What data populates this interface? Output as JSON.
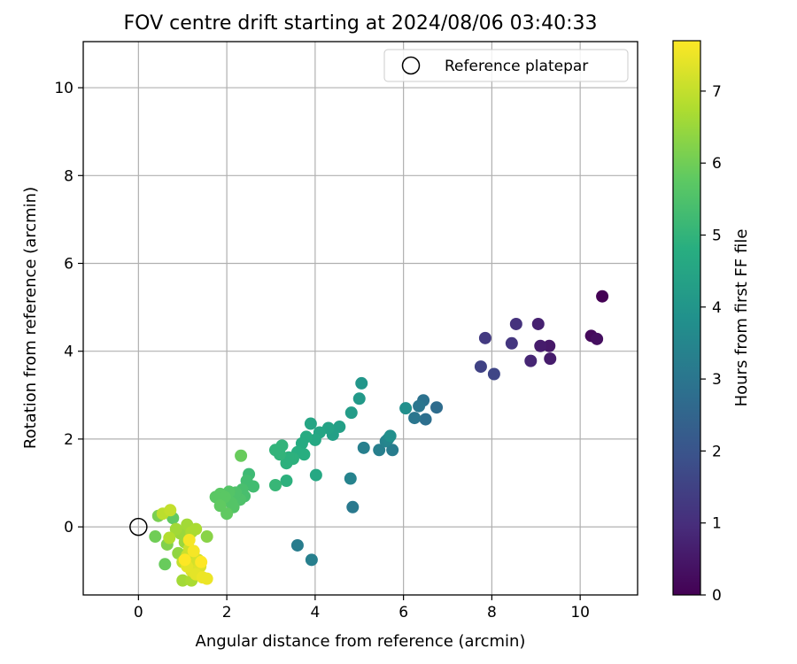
{
  "chart_data": {
    "type": "scatter",
    "title": "FOV centre drift starting at 2024/08/06 03:40:33",
    "xlabel": "Angular distance from reference (arcmin)",
    "ylabel": "Rotation from reference (arcmin)",
    "xlim": [
      -1.25,
      11.3
    ],
    "ylim": [
      -1.55,
      11.05
    ],
    "xticks": [
      0,
      2,
      4,
      6,
      8,
      10
    ],
    "yticks": [
      0,
      2,
      4,
      6,
      8,
      10
    ],
    "grid": true,
    "legend": {
      "position": "upper-right",
      "entries": [
        "Reference platepar"
      ]
    },
    "reference_point": {
      "x": 0,
      "y": 0,
      "label": "Reference platepar"
    },
    "colorbar": {
      "label": "Hours from first FF file",
      "colormap": "viridis",
      "range": [
        0,
        7.7
      ],
      "ticks": [
        0,
        1,
        2,
        3,
        4,
        5,
        6,
        7
      ]
    },
    "points": [
      {
        "x": 10.5,
        "y": 5.25,
        "c": 0.0
      },
      {
        "x": 10.25,
        "y": 4.35,
        "c": 0.2
      },
      {
        "x": 10.38,
        "y": 4.28,
        "c": 0.3
      },
      {
        "x": 9.3,
        "y": 4.12,
        "c": 0.5
      },
      {
        "x": 9.1,
        "y": 4.12,
        "c": 0.6
      },
      {
        "x": 9.32,
        "y": 3.83,
        "c": 0.6
      },
      {
        "x": 9.05,
        "y": 4.62,
        "c": 0.7
      },
      {
        "x": 8.88,
        "y": 3.78,
        "c": 0.8
      },
      {
        "x": 8.55,
        "y": 4.62,
        "c": 1.1
      },
      {
        "x": 8.45,
        "y": 4.18,
        "c": 1.2
      },
      {
        "x": 7.85,
        "y": 4.3,
        "c": 1.3
      },
      {
        "x": 7.75,
        "y": 3.65,
        "c": 1.5
      },
      {
        "x": 8.05,
        "y": 3.48,
        "c": 1.6
      },
      {
        "x": 6.75,
        "y": 2.72,
        "c": 2.7
      },
      {
        "x": 6.5,
        "y": 2.45,
        "c": 2.8
      },
      {
        "x": 6.45,
        "y": 2.88,
        "c": 2.9
      },
      {
        "x": 6.35,
        "y": 2.75,
        "c": 3.0
      },
      {
        "x": 6.25,
        "y": 2.48,
        "c": 3.0
      },
      {
        "x": 5.75,
        "y": 1.75,
        "c": 3.2
      },
      {
        "x": 5.45,
        "y": 1.75,
        "c": 3.3
      },
      {
        "x": 5.6,
        "y": 1.95,
        "c": 3.4
      },
      {
        "x": 5.1,
        "y": 1.8,
        "c": 3.3
      },
      {
        "x": 5.65,
        "y": 2.0,
        "c": 3.5
      },
      {
        "x": 6.05,
        "y": 2.7,
        "c": 3.8
      },
      {
        "x": 5.7,
        "y": 2.07,
        "c": 3.8
      },
      {
        "x": 4.85,
        "y": 0.45,
        "c": 3.1
      },
      {
        "x": 4.8,
        "y": 1.1,
        "c": 3.4
      },
      {
        "x": 3.6,
        "y": -0.42,
        "c": 3.2
      },
      {
        "x": 3.92,
        "y": -0.75,
        "c": 3.3
      },
      {
        "x": 5.05,
        "y": 3.27,
        "c": 4.0
      },
      {
        "x": 5.0,
        "y": 2.92,
        "c": 4.1
      },
      {
        "x": 4.82,
        "y": 2.6,
        "c": 4.2
      },
      {
        "x": 4.55,
        "y": 2.28,
        "c": 4.3
      },
      {
        "x": 4.4,
        "y": 2.1,
        "c": 4.3
      },
      {
        "x": 4.3,
        "y": 2.25,
        "c": 4.4
      },
      {
        "x": 4.1,
        "y": 2.15,
        "c": 4.5
      },
      {
        "x": 3.9,
        "y": 2.35,
        "c": 4.5
      },
      {
        "x": 4.0,
        "y": 1.98,
        "c": 4.6
      },
      {
        "x": 3.8,
        "y": 2.05,
        "c": 4.7
      },
      {
        "x": 3.7,
        "y": 1.9,
        "c": 4.7
      },
      {
        "x": 4.02,
        "y": 1.18,
        "c": 4.6
      },
      {
        "x": 3.75,
        "y": 1.65,
        "c": 4.8
      },
      {
        "x": 3.6,
        "y": 1.7,
        "c": 4.8
      },
      {
        "x": 3.5,
        "y": 1.55,
        "c": 4.9
      },
      {
        "x": 3.35,
        "y": 1.45,
        "c": 4.9
      },
      {
        "x": 3.4,
        "y": 1.58,
        "c": 4.9
      },
      {
        "x": 3.2,
        "y": 1.65,
        "c": 5.0
      },
      {
        "x": 3.25,
        "y": 1.85,
        "c": 5.0
      },
      {
        "x": 3.1,
        "y": 1.75,
        "c": 5.0
      },
      {
        "x": 3.35,
        "y": 1.05,
        "c": 4.9
      },
      {
        "x": 3.1,
        "y": 0.95,
        "c": 5.1
      },
      {
        "x": 2.5,
        "y": 1.2,
        "c": 5.2
      },
      {
        "x": 2.45,
        "y": 1.05,
        "c": 5.3
      },
      {
        "x": 2.6,
        "y": 0.92,
        "c": 5.3
      },
      {
        "x": 2.35,
        "y": 0.85,
        "c": 5.4
      },
      {
        "x": 2.4,
        "y": 0.7,
        "c": 5.4
      },
      {
        "x": 2.3,
        "y": 0.62,
        "c": 5.5
      },
      {
        "x": 2.2,
        "y": 0.78,
        "c": 5.5
      },
      {
        "x": 2.1,
        "y": 0.55,
        "c": 5.6
      },
      {
        "x": 2.15,
        "y": 0.45,
        "c": 5.6
      },
      {
        "x": 2.05,
        "y": 0.8,
        "c": 5.6
      },
      {
        "x": 1.95,
        "y": 0.68,
        "c": 5.7
      },
      {
        "x": 1.85,
        "y": 0.75,
        "c": 5.7
      },
      {
        "x": 1.75,
        "y": 0.68,
        "c": 5.7
      },
      {
        "x": 1.85,
        "y": 0.48,
        "c": 5.8
      },
      {
        "x": 2.0,
        "y": 0.3,
        "c": 5.8
      },
      {
        "x": 2.32,
        "y": 1.62,
        "c": 5.9
      },
      {
        "x": 0.6,
        "y": -0.85,
        "c": 5.9
      },
      {
        "x": 0.38,
        "y": -0.22,
        "c": 6.0
      },
      {
        "x": 0.45,
        "y": 0.25,
        "c": 6.1
      },
      {
        "x": 0.65,
        "y": -0.4,
        "c": 6.2
      },
      {
        "x": 0.78,
        "y": 0.2,
        "c": 5.8
      },
      {
        "x": 1.55,
        "y": -0.22,
        "c": 6.3
      },
      {
        "x": 0.9,
        "y": -0.6,
        "c": 6.4
      },
      {
        "x": 0.95,
        "y": -0.15,
        "c": 6.5
      },
      {
        "x": 1.05,
        "y": -0.35,
        "c": 6.5
      },
      {
        "x": 0.85,
        "y": -0.05,
        "c": 6.6
      },
      {
        "x": 1.1,
        "y": 0.05,
        "c": 6.6
      },
      {
        "x": 1.2,
        "y": -0.12,
        "c": 6.7
      },
      {
        "x": 1.3,
        "y": -0.05,
        "c": 6.7
      },
      {
        "x": 1.0,
        "y": -1.22,
        "c": 6.6
      },
      {
        "x": 1.2,
        "y": -1.22,
        "c": 6.7
      },
      {
        "x": 0.7,
        "y": -0.25,
        "c": 6.8
      },
      {
        "x": 0.55,
        "y": 0.3,
        "c": 6.9
      },
      {
        "x": 0.72,
        "y": 0.38,
        "c": 7.0
      },
      {
        "x": 1.0,
        "y": -0.8,
        "c": 7.0
      },
      {
        "x": 1.1,
        "y": -0.65,
        "c": 7.1
      },
      {
        "x": 1.15,
        "y": -0.5,
        "c": 7.1
      },
      {
        "x": 1.25,
        "y": -0.85,
        "c": 7.2
      },
      {
        "x": 1.35,
        "y": -0.75,
        "c": 7.2
      },
      {
        "x": 1.4,
        "y": -0.9,
        "c": 7.3
      },
      {
        "x": 1.2,
        "y": -1.0,
        "c": 7.3
      },
      {
        "x": 1.3,
        "y": -1.08,
        "c": 7.4
      },
      {
        "x": 1.1,
        "y": -0.9,
        "c": 7.4
      },
      {
        "x": 1.45,
        "y": -1.15,
        "c": 7.5
      },
      {
        "x": 1.55,
        "y": -1.18,
        "c": 7.5
      },
      {
        "x": 1.15,
        "y": -0.3,
        "c": 7.6
      },
      {
        "x": 1.25,
        "y": -0.55,
        "c": 7.6
      },
      {
        "x": 1.05,
        "y": -0.75,
        "c": 7.7
      },
      {
        "x": 1.42,
        "y": -0.8,
        "c": 7.7
      }
    ]
  }
}
